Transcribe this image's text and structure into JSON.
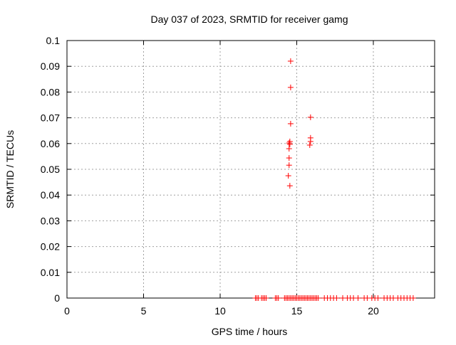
{
  "chart_data": {
    "type": "scatter",
    "title": "Day 037 of 2023, SRMTID for receiver gamg",
    "xlabel": "GPS time / hours",
    "ylabel": "SRMTID / TECUs",
    "xlim": [
      0,
      24
    ],
    "ylim": [
      0,
      0.1
    ],
    "x_ticks": [
      0,
      5,
      10,
      15,
      20
    ],
    "x_tick_labels": [
      "0",
      "5",
      "10",
      "15",
      "20"
    ],
    "y_ticks": [
      0,
      0.01,
      0.02,
      0.03,
      0.04,
      0.05,
      0.06,
      0.07,
      0.08,
      0.09,
      0.1
    ],
    "y_tick_labels": [
      "0",
      "0.01",
      "0.02",
      "0.03",
      "0.04",
      "0.05",
      "0.06",
      "0.07",
      "0.08",
      "0.09",
      "0.1"
    ],
    "grid": true,
    "marker": "+",
    "color": "#ff0000",
    "series": [
      {
        "name": "SRMTID",
        "points": [
          [
            14.6,
            0.092
          ],
          [
            14.6,
            0.0818
          ],
          [
            15.9,
            0.0702
          ],
          [
            14.6,
            0.0677
          ],
          [
            14.55,
            0.0608
          ],
          [
            14.5,
            0.0602
          ],
          [
            14.55,
            0.0597
          ],
          [
            14.5,
            0.058
          ],
          [
            14.5,
            0.0544
          ],
          [
            14.5,
            0.0516
          ],
          [
            14.45,
            0.0475
          ],
          [
            14.55,
            0.0436
          ],
          [
            15.9,
            0.0622
          ],
          [
            15.9,
            0.0608
          ],
          [
            15.85,
            0.0594
          ],
          [
            12.3,
            0
          ],
          [
            12.4,
            0
          ],
          [
            12.5,
            0
          ],
          [
            12.7,
            0
          ],
          [
            12.8,
            0
          ],
          [
            12.9,
            0
          ],
          [
            13.0,
            0
          ],
          [
            13.6,
            0
          ],
          [
            13.7,
            0
          ],
          [
            13.8,
            0
          ],
          [
            14.2,
            0
          ],
          [
            14.3,
            0
          ],
          [
            14.4,
            0
          ],
          [
            14.5,
            0
          ],
          [
            14.6,
            0
          ],
          [
            14.7,
            0
          ],
          [
            14.8,
            0
          ],
          [
            14.9,
            0
          ],
          [
            15.0,
            0
          ],
          [
            15.1,
            0
          ],
          [
            15.2,
            0
          ],
          [
            15.3,
            0
          ],
          [
            15.4,
            0
          ],
          [
            15.5,
            0
          ],
          [
            15.6,
            0
          ],
          [
            15.7,
            0
          ],
          [
            15.8,
            0
          ],
          [
            15.9,
            0
          ],
          [
            16.0,
            0
          ],
          [
            16.1,
            0
          ],
          [
            16.2,
            0
          ],
          [
            16.3,
            0
          ],
          [
            16.4,
            0
          ],
          [
            16.8,
            0
          ],
          [
            17.0,
            0
          ],
          [
            17.2,
            0
          ],
          [
            17.4,
            0
          ],
          [
            17.6,
            0
          ],
          [
            18.0,
            0
          ],
          [
            18.3,
            0
          ],
          [
            18.5,
            0
          ],
          [
            18.7,
            0
          ],
          [
            19.0,
            0
          ],
          [
            19.4,
            0
          ],
          [
            19.6,
            0
          ],
          [
            19.9,
            0
          ],
          [
            20.1,
            0
          ],
          [
            20.3,
            0
          ],
          [
            20.7,
            0
          ],
          [
            20.9,
            0
          ],
          [
            21.1,
            0
          ],
          [
            21.3,
            0
          ],
          [
            21.6,
            0
          ],
          [
            21.8,
            0
          ],
          [
            22.0,
            0
          ],
          [
            22.2,
            0
          ],
          [
            22.4,
            0
          ],
          [
            22.6,
            0
          ]
        ]
      }
    ]
  }
}
